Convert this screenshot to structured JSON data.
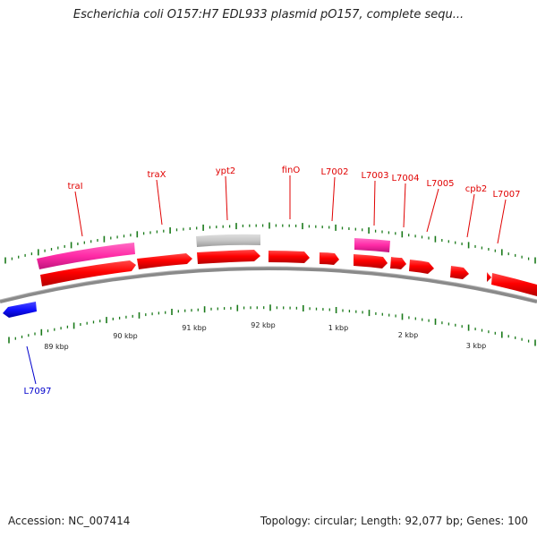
{
  "title": "Escherichia coli O157:H7 EDL933 plasmid pO157, complete sequ...",
  "footer": {
    "accession": "Accession: NC_007414",
    "summary": "Topology: circular; Length: 92,077 bp; Genes: 100"
  },
  "colors": {
    "forward_gene": "#ff0000",
    "forward_gene_dark": "#c80000",
    "pink_feature": "#ff2aa6",
    "gray_feature": "#c6c6c6",
    "reverse_gene": "#1010ff",
    "backbone": "#8a8a8a",
    "tick": "#1a7a1a",
    "gene_label": "#e00000",
    "reverse_label": "#0000cc"
  },
  "genome": {
    "length_bp": 92077,
    "topology": "circular"
  },
  "scale_labels": [
    "89 kbp",
    "90 kbp",
    "91 kbp",
    "92 kbp",
    "1 kbp",
    "2 kbp",
    "3 kbp"
  ],
  "gene_labels": [
    {
      "text": "traI",
      "strand": "forward"
    },
    {
      "text": "traX",
      "strand": "forward"
    },
    {
      "text": "ypt2",
      "strand": "forward"
    },
    {
      "text": "finO",
      "strand": "forward"
    },
    {
      "text": "L7002",
      "strand": "forward"
    },
    {
      "text": "L7003",
      "strand": "forward"
    },
    {
      "text": "L7004",
      "strand": "forward"
    },
    {
      "text": "L7005",
      "strand": "forward"
    },
    {
      "text": "cpb2",
      "strand": "forward"
    },
    {
      "text": "L7007",
      "strand": "forward"
    },
    {
      "text": "L7097",
      "strand": "reverse"
    }
  ]
}
